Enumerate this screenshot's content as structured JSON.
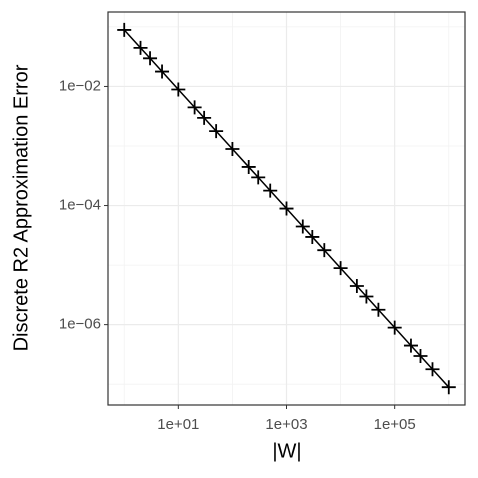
{
  "chart_data": {
    "type": "line",
    "x_label": "|W|",
    "y_label": "Discrete R2 Approximation Error",
    "x_log": true,
    "y_log": true,
    "grid": true,
    "color": "#000000",
    "marker": "plus",
    "x": [
      1,
      2,
      3,
      5,
      10,
      20,
      30,
      50,
      100,
      200,
      300,
      500,
      1000,
      2000,
      3000,
      5000,
      10000,
      20000,
      30000,
      50000,
      100000,
      200000,
      300000,
      500000,
      1000000
    ],
    "values": [
      0.089,
      0.0445,
      0.0297,
      0.0178,
      0.0089,
      0.00445,
      0.00297,
      0.00178,
      0.00089,
      0.000445,
      0.000297,
      0.000178,
      8.9e-05,
      4.45e-05,
      2.97e-05,
      1.78e-05,
      8.9e-06,
      4.45e-06,
      2.97e-06,
      1.78e-06,
      8.9e-07,
      4.45e-07,
      2.97e-07,
      1.78e-07,
      8.9e-08
    ],
    "xlim": [
      0.501,
      1995262
    ],
    "ylim": [
      0.178,
      4.47e-08
    ],
    "xticks": [
      {
        "value": 10,
        "label": "1e+01"
      },
      {
        "value": 1000,
        "label": "1e+03"
      },
      {
        "value": 100000,
        "label": "1e+05"
      }
    ],
    "yticks": [
      {
        "value": 0.01,
        "label": "1e−02"
      },
      {
        "value": 0.0001,
        "label": "1e−04"
      },
      {
        "value": 1e-06,
        "label": "1e−06"
      }
    ],
    "x_minor_grid": [
      1,
      100,
      10000,
      1000000
    ],
    "y_minor_grid": [
      0.1,
      0.001,
      1e-05,
      1e-07
    ]
  }
}
